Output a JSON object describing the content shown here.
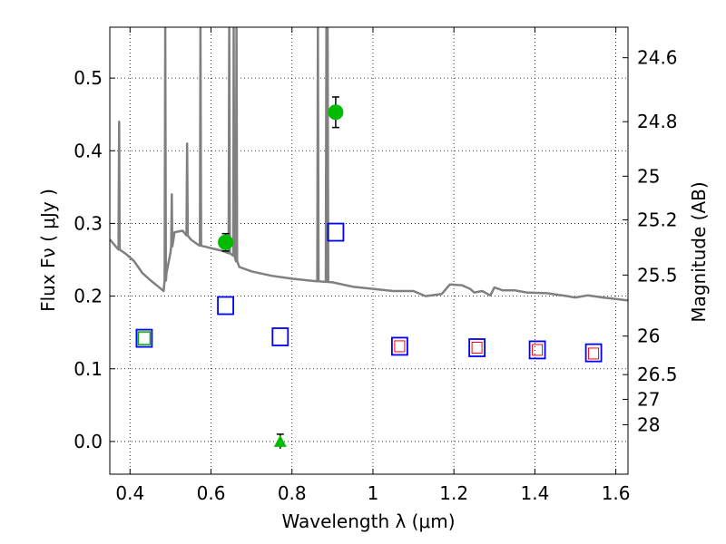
{
  "chart_data": {
    "type": "scatter",
    "xlabel": "Wavelength  λ (μm)",
    "ylabel_left": "Flux  Fν  ( μJy )",
    "ylabel_right": "Magnitude (AB)",
    "xlim": [
      0.35,
      1.63
    ],
    "ylim": [
      -0.045,
      0.57
    ],
    "grid": true,
    "x_ticks": [
      0.4,
      0.6,
      0.8,
      1.0,
      1.2,
      1.4,
      1.6
    ],
    "x_tick_labels": [
      "0.4",
      "0.6",
      "0.8",
      "1",
      "1.2",
      "1.4",
      "1.6"
    ],
    "y_ticks": [
      0.0,
      0.1,
      0.2,
      0.3,
      0.4,
      0.5
    ],
    "y_tick_labels": [
      "0.0",
      "0.1",
      "0.2",
      "0.3",
      "0.4",
      "0.5"
    ],
    "right_ticks": [
      {
        "label": "24.6",
        "flux": 0.528
      },
      {
        "label": "24.8",
        "flux": 0.44
      },
      {
        "label": "25",
        "flux": 0.365
      },
      {
        "label": "25.2",
        "flux": 0.305
      },
      {
        "label": "25.5",
        "flux": 0.229
      },
      {
        "label": "26",
        "flux": 0.145
      },
      {
        "label": "26.5",
        "flux": 0.092
      },
      {
        "label": "27",
        "flux": 0.058
      },
      {
        "label": "28",
        "flux": 0.023
      }
    ],
    "series": [
      {
        "kind": "spectrum",
        "color": "#808080",
        "continuum": [
          [
            0.35,
            0.278
          ],
          [
            0.37,
            0.265
          ],
          [
            0.39,
            0.258
          ],
          [
            0.41,
            0.248
          ],
          [
            0.43,
            0.232
          ],
          [
            0.45,
            0.222
          ],
          [
            0.47,
            0.213
          ],
          [
            0.483,
            0.207
          ],
          [
            0.49,
            0.232
          ],
          [
            0.5,
            0.26
          ],
          [
            0.51,
            0.288
          ],
          [
            0.53,
            0.29
          ],
          [
            0.55,
            0.278
          ],
          [
            0.57,
            0.27
          ],
          [
            0.6,
            0.266
          ],
          [
            0.63,
            0.262
          ],
          [
            0.655,
            0.257
          ],
          [
            0.67,
            0.24
          ],
          [
            0.7,
            0.234
          ],
          [
            0.75,
            0.228
          ],
          [
            0.8,
            0.224
          ],
          [
            0.85,
            0.221
          ],
          [
            0.9,
            0.219
          ],
          [
            0.95,
            0.213
          ],
          [
            1.0,
            0.21
          ],
          [
            1.05,
            0.207
          ],
          [
            1.1,
            0.207
          ],
          [
            1.13,
            0.2
          ],
          [
            1.17,
            0.203
          ],
          [
            1.19,
            0.216
          ],
          [
            1.22,
            0.215
          ],
          [
            1.24,
            0.21
          ],
          [
            1.25,
            0.205
          ],
          [
            1.27,
            0.207
          ],
          [
            1.29,
            0.201
          ],
          [
            1.3,
            0.212
          ],
          [
            1.32,
            0.208
          ],
          [
            1.35,
            0.208
          ],
          [
            1.38,
            0.205
          ],
          [
            1.43,
            0.204
          ],
          [
            1.48,
            0.2
          ],
          [
            1.5,
            0.198
          ],
          [
            1.53,
            0.201
          ],
          [
            1.57,
            0.198
          ],
          [
            1.6,
            0.196
          ],
          [
            1.63,
            0.194
          ]
        ],
        "lines": [
          {
            "x": 0.373,
            "peak": 0.44
          },
          {
            "x": 0.487,
            "peak": 0.57
          },
          {
            "x": 0.503,
            "peak": 0.34
          },
          {
            "x": 0.541,
            "peak": 0.41
          },
          {
            "x": 0.574,
            "peak": 0.57
          },
          {
            "x": 0.645,
            "peak": 0.57
          },
          {
            "x": 0.656,
            "peak": 0.57
          },
          {
            "x": 0.663,
            "peak": 0.57
          },
          {
            "x": 0.864,
            "peak": 0.57
          },
          {
            "x": 0.885,
            "peak": 0.57
          },
          {
            "x": 0.888,
            "peak": 0.57
          }
        ]
      },
      {
        "kind": "blue-squares",
        "color": "#0000ff",
        "points": [
          [
            0.435,
            0.142
          ],
          [
            0.636,
            0.187
          ],
          [
            0.771,
            0.144
          ],
          [
            0.908,
            0.288
          ],
          [
            1.066,
            0.131
          ],
          [
            1.257,
            0.129
          ],
          [
            1.406,
            0.126
          ],
          [
            1.545,
            0.122
          ]
        ]
      },
      {
        "kind": "green-square",
        "color": "#00aa00",
        "points": [
          [
            0.435,
            0.142
          ]
        ]
      },
      {
        "kind": "red-squares",
        "color": "#ff0000",
        "points": [
          [
            1.066,
            0.131
          ],
          [
            1.257,
            0.129
          ],
          [
            1.406,
            0.126
          ],
          [
            1.545,
            0.121
          ]
        ]
      },
      {
        "kind": "green-circles",
        "color": "#00bb00",
        "points": [
          [
            0.636,
            0.274,
            0.012
          ],
          [
            0.908,
            0.453,
            0.021
          ]
        ]
      },
      {
        "kind": "green-triangle",
        "color": "#00bb00",
        "points": [
          [
            0.771,
            0.0,
            0.01
          ]
        ]
      }
    ]
  }
}
